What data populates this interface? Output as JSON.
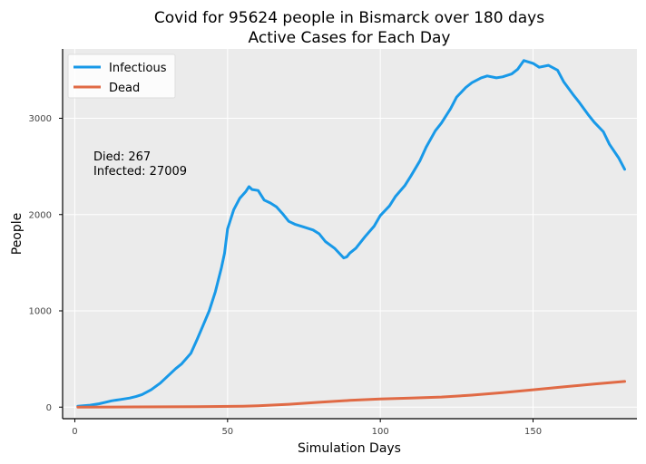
{
  "chart_data": {
    "type": "line",
    "title": "Covid for 95624 people in Bismarck over 180 days",
    "subtitle": "Active Cases for Each Day",
    "xlabel": "Simulation Days",
    "ylabel": "People",
    "xlim": [
      -4,
      184
    ],
    "ylim": [
      -120,
      3720
    ],
    "xticks": [
      0,
      50,
      100,
      150
    ],
    "yticks": [
      0,
      1000,
      2000,
      3000
    ],
    "grid": true,
    "legend_position": "top-left",
    "annotation_died": "Died: 267",
    "annotation_infected": "Infected: 27009",
    "series": [
      {
        "name": "Infectious",
        "color": "#1899e8",
        "x": [
          1,
          5,
          8,
          10,
          12,
          15,
          18,
          20,
          22,
          25,
          28,
          30,
          33,
          35,
          38,
          40,
          42,
          44,
          46,
          48,
          49,
          50,
          51,
          52,
          54,
          56,
          57,
          58,
          60,
          62,
          64,
          66,
          68,
          70,
          72,
          75,
          78,
          80,
          82,
          85,
          88,
          89,
          90,
          92,
          95,
          98,
          100,
          103,
          105,
          108,
          110,
          113,
          115,
          118,
          120,
          123,
          125,
          128,
          130,
          133,
          135,
          138,
          140,
          143,
          145,
          147,
          150,
          152,
          155,
          158,
          160,
          163,
          165,
          168,
          170,
          173,
          175,
          178,
          180
        ],
        "y": [
          10,
          20,
          35,
          50,
          65,
          80,
          95,
          110,
          130,
          180,
          250,
          310,
          400,
          450,
          560,
          700,
          850,
          1000,
          1200,
          1450,
          1600,
          1850,
          1950,
          2050,
          2170,
          2240,
          2290,
          2260,
          2250,
          2150,
          2120,
          2080,
          2010,
          1930,
          1900,
          1870,
          1840,
          1800,
          1720,
          1650,
          1550,
          1560,
          1600,
          1650,
          1770,
          1880,
          1990,
          2090,
          2190,
          2300,
          2400,
          2560,
          2700,
          2870,
          2950,
          3100,
          3220,
          3320,
          3370,
          3420,
          3440,
          3420,
          3430,
          3460,
          3510,
          3600,
          3570,
          3530,
          3550,
          3500,
          3380,
          3250,
          3170,
          3040,
          2960,
          2860,
          2730,
          2590,
          2470
        ]
      },
      {
        "name": "Dead",
        "color": "#e06a45",
        "x": [
          1,
          20,
          40,
          55,
          60,
          70,
          80,
          90,
          100,
          110,
          120,
          130,
          140,
          150,
          160,
          170,
          180
        ],
        "y": [
          0,
          2,
          5,
          10,
          15,
          30,
          50,
          70,
          85,
          95,
          105,
          125,
          150,
          180,
          210,
          240,
          267
        ]
      }
    ]
  }
}
